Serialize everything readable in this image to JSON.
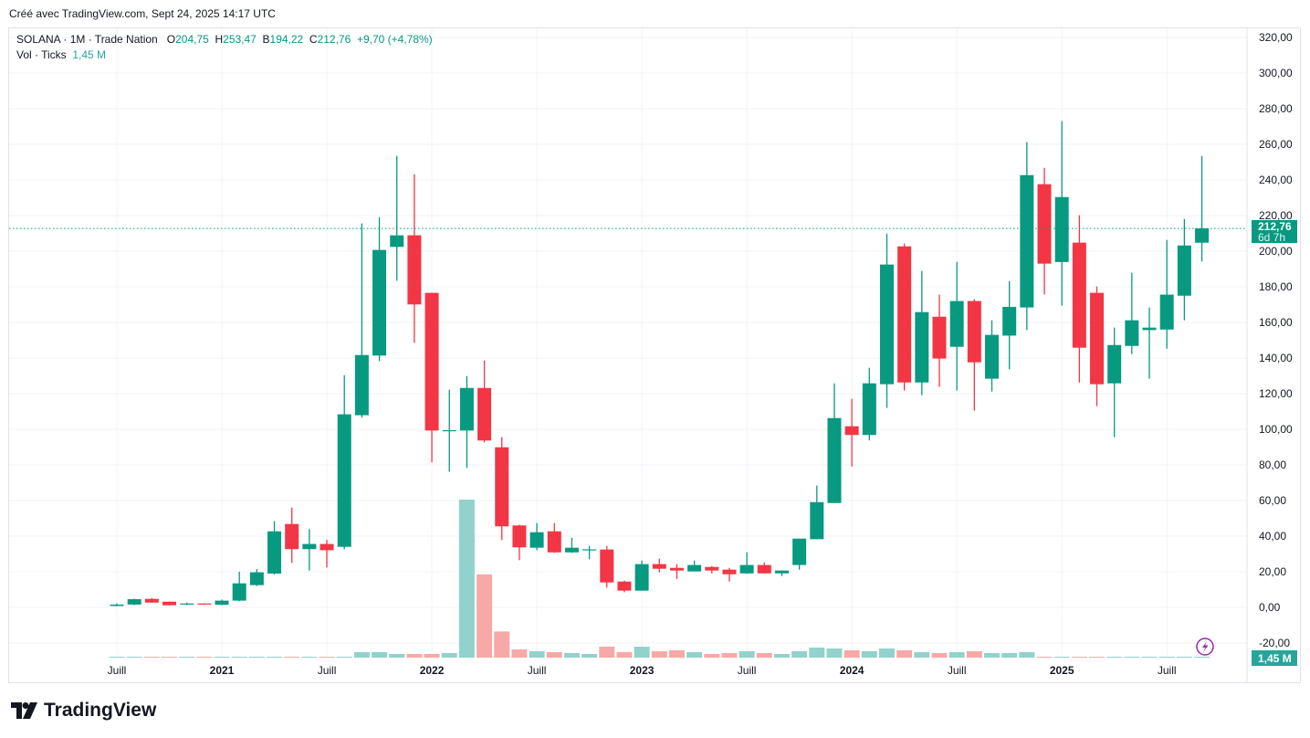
{
  "credit": "Créé avec TradingView.com, Sept 24, 2025 14:17 UTC",
  "legend": {
    "symbol": "SOLANA · 1M · Trade Nation",
    "open_label": "O",
    "open": "204,75",
    "high_label": "H",
    "high": "253,47",
    "low_label": "B",
    "low": "194,22",
    "close_label": "C",
    "close": "212,76",
    "change": "+9,70 (+4,78%)",
    "volume_label": "Vol · Ticks",
    "volume": "1,45 M"
  },
  "price_badge": {
    "value": "212,76",
    "countdown": "6d 7h"
  },
  "volume_badge": "1,45 M",
  "footer_logo": "TradingView",
  "colors": {
    "up": "#089981",
    "down": "#F23645",
    "vol_up": "#92D2CC",
    "vol_down": "#F7A9A7",
    "grid": "#f0f3fa"
  },
  "chart_data": {
    "type": "candlestick",
    "interval": "1M",
    "y_ticks": [
      "-20,00",
      "0,00",
      "20,00",
      "40,00",
      "60,00",
      "80,00",
      "100,00",
      "120,00",
      "140,00",
      "160,00",
      "180,00",
      "200,00",
      "220,00",
      "240,00",
      "260,00",
      "280,00",
      "300,00",
      "320,00"
    ],
    "ylim": [
      -20,
      320
    ],
    "x_ticks": [
      {
        "date": "2020-07",
        "label": "Juill"
      },
      {
        "date": "2021-01",
        "label": "2021"
      },
      {
        "date": "2021-07",
        "label": "Juill"
      },
      {
        "date": "2022-01",
        "label": "2022"
      },
      {
        "date": "2022-07",
        "label": "Juill"
      },
      {
        "date": "2023-01",
        "label": "2023"
      },
      {
        "date": "2023-07",
        "label": "Juill"
      },
      {
        "date": "2024-01",
        "label": "2024"
      },
      {
        "date": "2024-07",
        "label": "Juill"
      },
      {
        "date": "2025-01",
        "label": "2025"
      },
      {
        "date": "2025-07",
        "label": "Juill"
      }
    ],
    "grid": true,
    "last_price": 212.76,
    "columns": [
      "date",
      "open",
      "high",
      "low",
      "close",
      "volume_M"
    ],
    "candles": [
      [
        "2020-07",
        0.8,
        2.2,
        0.6,
        1.6,
        1
      ],
      [
        "2020-08",
        1.6,
        4.9,
        1.3,
        4.6,
        1
      ],
      [
        "2020-09",
        4.8,
        5.2,
        2.6,
        2.7,
        1
      ],
      [
        "2020-10",
        3.2,
        3.3,
        1.1,
        1.2,
        1
      ],
      [
        "2020-11",
        1.7,
        2.7,
        1.3,
        2.2,
        1
      ],
      [
        "2020-12",
        2.2,
        2.3,
        1.4,
        1.7,
        1
      ],
      [
        "2021-01",
        1.5,
        4.4,
        1.2,
        3.8,
        1
      ],
      [
        "2021-02",
        3.8,
        20,
        3.5,
        13.5,
        1
      ],
      [
        "2021-03",
        12.5,
        21.5,
        12,
        19.7,
        1
      ],
      [
        "2021-04",
        19,
        48.5,
        18.5,
        42.7,
        1
      ],
      [
        "2021-05",
        46.8,
        56,
        25,
        32.7,
        1
      ],
      [
        "2021-06",
        32.7,
        44,
        20.7,
        35.6,
        1
      ],
      [
        "2021-07",
        35.6,
        38,
        22.4,
        32.1,
        1
      ],
      [
        "2021-08",
        34,
        130.4,
        32.7,
        108.4,
        1
      ],
      [
        "2021-09",
        107.9,
        215.6,
        106.5,
        141.7,
        9
      ],
      [
        "2021-10",
        141.4,
        219.1,
        138.3,
        200.7,
        9
      ],
      [
        "2021-11",
        202.4,
        253.5,
        183.4,
        208.9,
        6
      ],
      [
        "2021-12",
        208.9,
        243.2,
        148.5,
        170.1,
        6
      ],
      [
        "2022-01",
        176.6,
        176.6,
        81.4,
        99.3,
        6
      ],
      [
        "2022-02",
        99.3,
        122.2,
        76.2,
        99.5,
        7.5
      ],
      [
        "2022-03",
        99.3,
        129.9,
        78.3,
        123.2,
        260
      ],
      [
        "2022-04",
        123.2,
        138.6,
        92.6,
        93.7,
        137
      ],
      [
        "2022-05",
        89.9,
        95.6,
        37.8,
        45.5,
        43
      ],
      [
        "2022-06",
        46,
        46.4,
        26.5,
        33.7,
        13.5
      ],
      [
        "2022-07",
        33.5,
        47.4,
        32.1,
        42.2,
        10.5
      ],
      [
        "2022-08",
        42.7,
        47.4,
        30.6,
        30.9,
        9
      ],
      [
        "2022-09",
        30.9,
        39.1,
        30.6,
        33.5,
        7.5
      ],
      [
        "2022-10",
        32.3,
        34.5,
        27,
        32.6,
        6
      ],
      [
        "2022-11",
        32.5,
        34.5,
        11.1,
        14,
        18
      ],
      [
        "2022-12",
        14.5,
        15,
        8.5,
        9.4,
        9
      ],
      [
        "2023-01",
        9.4,
        26.3,
        9.4,
        24.3,
        18
      ],
      [
        "2023-02",
        24.3,
        27.4,
        19.7,
        21.7,
        10.5
      ],
      [
        "2023-03",
        22.2,
        24.3,
        16,
        20.7,
        12
      ],
      [
        "2023-04",
        20.2,
        26.3,
        20.2,
        23.8,
        9
      ],
      [
        "2023-05",
        22.7,
        23.2,
        19.1,
        20.7,
        6
      ],
      [
        "2023-06",
        21.2,
        22.2,
        14.5,
        18.6,
        7.5
      ],
      [
        "2023-07",
        19.1,
        31,
        18.8,
        23.8,
        10.5
      ],
      [
        "2023-08",
        23.8,
        25.3,
        19.1,
        19.1,
        7.5
      ],
      [
        "2023-09",
        19.1,
        20.7,
        17.6,
        20.7,
        6
      ],
      [
        "2023-10",
        23.8,
        38.6,
        21.2,
        38.6,
        10.5
      ],
      [
        "2023-11",
        38.3,
        68.4,
        38.3,
        59.1,
        16.5
      ],
      [
        "2023-12",
        58.6,
        125.8,
        58.6,
        106.3,
        15
      ],
      [
        "2024-01",
        101.7,
        117.1,
        79.1,
        96.8,
        12
      ],
      [
        "2024-02",
        96.8,
        134.5,
        93.7,
        125.8,
        10.5
      ],
      [
        "2024-03",
        125.3,
        209.9,
        112,
        192.5,
        15
      ],
      [
        "2024-04",
        202.7,
        204.3,
        121.7,
        126.3,
        12
      ],
      [
        "2024-05",
        126.3,
        188.9,
        119.1,
        165.8,
        9
      ],
      [
        "2024-06",
        163.2,
        175.6,
        123.8,
        139.7,
        7.5
      ],
      [
        "2024-07",
        146.3,
        194,
        121.7,
        172,
        9
      ],
      [
        "2024-08",
        172,
        173,
        110.4,
        137.6,
        10.5
      ],
      [
        "2024-09",
        128.4,
        161.2,
        121.2,
        153,
        7.5
      ],
      [
        "2024-10",
        152.6,
        183.2,
        133.7,
        168.7,
        7.5
      ],
      [
        "2024-11",
        168.4,
        261.2,
        155.7,
        242.7,
        9
      ],
      [
        "2024-12",
        237.6,
        246.8,
        175.7,
        193,
        1.4
      ],
      [
        "2025-01",
        193.9,
        273,
        169.4,
        230.4,
        1.4
      ],
      [
        "2025-02",
        204.8,
        220.2,
        126.3,
        145.8,
        1.4
      ],
      [
        "2025-03",
        176.6,
        180.2,
        113,
        125.3,
        1.4
      ],
      [
        "2025-04",
        125.8,
        157.1,
        95.6,
        147.3,
        1.4
      ],
      [
        "2025-05",
        146.8,
        187.9,
        142.2,
        161.2,
        1.4
      ],
      [
        "2025-06",
        155.7,
        168.4,
        128.4,
        157.1,
        1.4
      ],
      [
        "2025-07",
        156,
        206.3,
        145.3,
        175.6,
        1.4
      ],
      [
        "2025-08",
        175,
        218.1,
        161.2,
        203.2,
        1.4
      ],
      [
        "2025-09",
        204.75,
        253.47,
        194.22,
        212.76,
        1.45
      ]
    ]
  }
}
